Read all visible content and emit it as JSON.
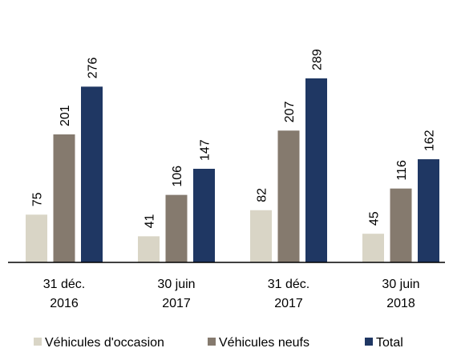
{
  "chart_data": {
    "type": "bar",
    "categories": [
      "31 déc.\n2016",
      "30 juin\n2017",
      "31 déc.\n2017",
      "30 juin\n2018"
    ],
    "series": [
      {
        "name": "Véhicules d'occasion",
        "color": "#d9d5c6",
        "values": [
          75,
          41,
          82,
          45
        ]
      },
      {
        "name": "Véhicules neufs",
        "color": "#857a6e",
        "values": [
          201,
          106,
          207,
          116
        ]
      },
      {
        "name": "Total",
        "color": "#1f3763",
        "values": [
          276,
          147,
          289,
          162
        ]
      }
    ],
    "legend": "bottom"
  }
}
